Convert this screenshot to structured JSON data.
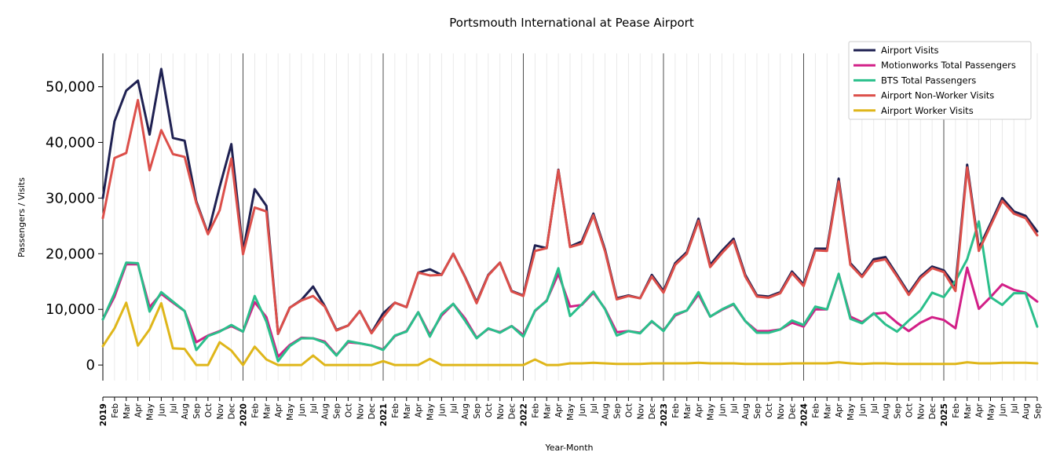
{
  "chart_data": {
    "type": "line",
    "title": "Portsmouth International at Pease Airport",
    "xlabel": "Year-Month",
    "ylabel": "Passengers / Visits",
    "ylim": [
      -2800,
      56000
    ],
    "yticks": [
      0,
      10000,
      20000,
      30000,
      40000,
      50000
    ],
    "ytick_labels": [
      "0",
      "10,000",
      "20,000",
      "30,000",
      "40,000",
      "50,000"
    ],
    "grid": "vertical-monthly",
    "legend_position": "top-right",
    "months": [
      "2019",
      "Feb",
      "Mar",
      "Apr",
      "May",
      "Jun",
      "Jul",
      "Aug",
      "Sep",
      "Oct",
      "Nov",
      "Dec",
      "2020",
      "Feb",
      "Mar",
      "Apr",
      "May",
      "Jun",
      "Jul",
      "Aug",
      "Sep",
      "Oct",
      "Nov",
      "Dec",
      "2021",
      "Feb",
      "Mar",
      "Apr",
      "May",
      "Jun",
      "Jul",
      "Aug",
      "Sep",
      "Oct",
      "Nov",
      "Dec",
      "2022",
      "Feb",
      "Mar",
      "Apr",
      "May",
      "Jun",
      "Jul",
      "Aug",
      "Sep",
      "Oct",
      "Nov",
      "Dec",
      "2023",
      "Feb",
      "Mar",
      "Apr",
      "May",
      "Jun",
      "Jul",
      "Aug",
      "Sep",
      "Oct",
      "Nov",
      "Dec",
      "2024",
      "Feb",
      "Mar",
      "Apr",
      "May",
      "Jun",
      "Jul",
      "Aug",
      "Sep",
      "Oct",
      "Nov",
      "Dec",
      "2025",
      "Feb",
      "Mar",
      "Apr",
      "May",
      "Jun",
      "Jul",
      "Aug",
      "Sep"
    ],
    "series": [
      {
        "name": "Airport Visits",
        "color": "#1f2152",
        "values": [
          30000,
          43800,
          49300,
          51100,
          41400,
          53200,
          40800,
          40300,
          29400,
          23600,
          32000,
          39700,
          20400,
          31600,
          28600,
          5600,
          10300,
          11700,
          14100,
          10600,
          6300,
          7100,
          9700,
          5800,
          9300,
          11200,
          10400,
          16600,
          17200,
          16200,
          20000,
          15900,
          11300,
          16200,
          18400,
          13300,
          12500,
          21500,
          21000,
          35100,
          21300,
          22200,
          27200,
          20700,
          12000,
          12500,
          12000,
          16200,
          13300,
          18300,
          20300,
          26300,
          18000,
          20500,
          22700,
          16200,
          12500,
          12300,
          13100,
          16800,
          14500,
          20900,
          20900,
          33500,
          18300,
          16000,
          19000,
          19400,
          16200,
          12900,
          15900,
          17700,
          17000,
          14200,
          36000,
          21000,
          25400,
          30000,
          27600,
          26800,
          24000
        ]
      },
      {
        "name": "Motionworks Total Passengers",
        "color": "#d21f87",
        "values": [
          8200,
          12300,
          18100,
          18100,
          10400,
          12800,
          11200,
          9700,
          4100,
          5300,
          6100,
          7000,
          6000,
          11300,
          8600,
          1500,
          3600,
          4900,
          4800,
          4200,
          1800,
          4100,
          3900,
          3500,
          2800,
          5200,
          6100,
          9500,
          5400,
          8900,
          11000,
          8400,
          4900,
          6500,
          5900,
          7000,
          5400,
          9700,
          11600,
          16400,
          10500,
          10800,
          13000,
          10100,
          5900,
          6100,
          5800,
          7800,
          6200,
          8900,
          9800,
          12700,
          8700,
          9900,
          10900,
          7900,
          6100,
          6100,
          6400,
          7600,
          6900,
          10000,
          10000,
          16300,
          8700,
          7700,
          9200,
          9400,
          7600,
          6100,
          7600,
          8600,
          8100,
          6600,
          17500,
          10100,
          12200,
          14500,
          13500,
          13000,
          11400
        ]
      },
      {
        "name": "BTS Total Passengers",
        "color": "#2abf8b",
        "values": [
          8200,
          12900,
          18400,
          18300,
          9600,
          13100,
          11400,
          9700,
          2700,
          5200,
          6000,
          7200,
          6000,
          12400,
          7800,
          700,
          3400,
          4800,
          4800,
          4000,
          1700,
          4300,
          3900,
          3500,
          2700,
          5300,
          6000,
          9500,
          5100,
          9200,
          11000,
          8000,
          4800,
          6600,
          5800,
          7000,
          5100,
          9800,
          11500,
          17400,
          8800,
          10900,
          13200,
          10000,
          5300,
          6100,
          5700,
          7900,
          6100,
          9100,
          9800,
          13100,
          8700,
          10000,
          11000,
          7900,
          5800,
          5800,
          6400,
          8000,
          7200,
          10500,
          10000,
          16400,
          8300,
          7500,
          9300,
          7300,
          6000,
          8000,
          9800,
          13000,
          12200,
          15100,
          19000,
          25800,
          12200,
          10800,
          12900,
          12900,
          6900
        ]
      },
      {
        "name": "Airport Non-Worker Visits",
        "color": "#dc4f4a",
        "values": [
          26400,
          37200,
          38100,
          47600,
          35000,
          42200,
          37900,
          37400,
          29100,
          23500,
          27800,
          37100,
          19900,
          28300,
          27600,
          5600,
          10300,
          11600,
          12400,
          10500,
          6200,
          7100,
          9700,
          5700,
          8600,
          11200,
          10400,
          16600,
          16100,
          16200,
          20000,
          15800,
          11100,
          16100,
          18400,
          13200,
          12400,
          20500,
          21000,
          35000,
          21200,
          21800,
          26900,
          20400,
          11800,
          12400,
          12000,
          15900,
          13000,
          18000,
          20000,
          25900,
          17600,
          20100,
          22300,
          15900,
          12300,
          12100,
          12900,
          16500,
          14200,
          20600,
          20500,
          33000,
          18000,
          15800,
          18600,
          19000,
          15900,
          12600,
          15600,
          17400,
          16700,
          13300,
          35500,
          20500,
          25000,
          29500,
          27200,
          26400,
          23300
        ]
      },
      {
        "name": "Airport Worker Visits",
        "color": "#dfb61a",
        "values": [
          3400,
          6600,
          11200,
          3500,
          6400,
          11100,
          3000,
          2900,
          0,
          0,
          4100,
          2600,
          0,
          3300,
          1000,
          0,
          0,
          0,
          1700,
          0,
          0,
          0,
          0,
          0,
          700,
          0,
          0,
          0,
          1100,
          0,
          0,
          0,
          0,
          0,
          0,
          0,
          0,
          1000,
          0,
          0,
          300,
          300,
          400,
          300,
          200,
          200,
          200,
          300,
          300,
          300,
          300,
          400,
          300,
          300,
          300,
          200,
          200,
          200,
          200,
          300,
          300,
          300,
          300,
          500,
          300,
          200,
          300,
          300,
          200,
          200,
          200,
          200,
          200,
          200,
          500,
          300,
          300,
          400,
          400,
          400,
          300
        ]
      }
    ]
  }
}
